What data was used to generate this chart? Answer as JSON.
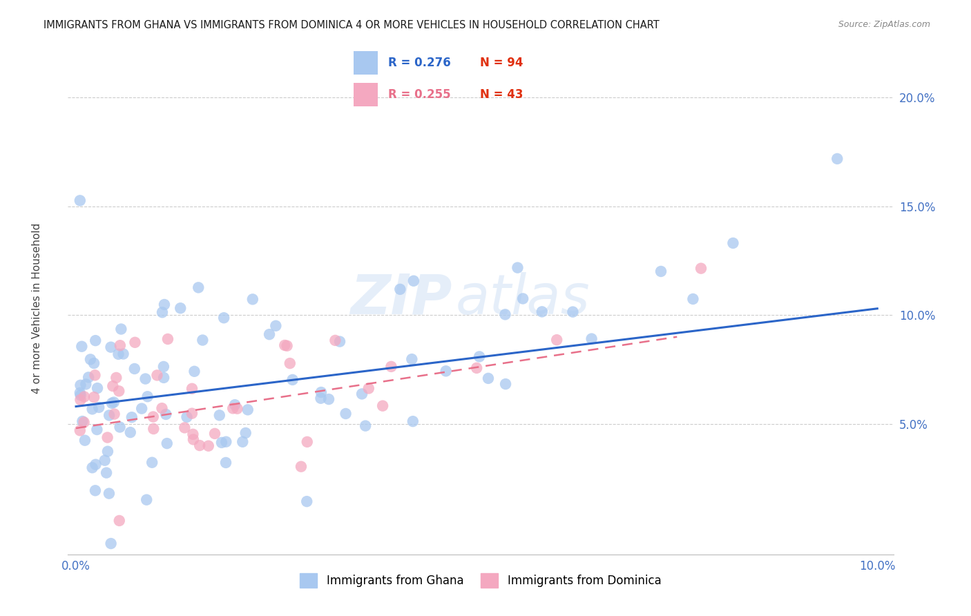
{
  "title": "IMMIGRANTS FROM GHANA VS IMMIGRANTS FROM DOMINICA 4 OR MORE VEHICLES IN HOUSEHOLD CORRELATION CHART",
  "source": "Source: ZipAtlas.com",
  "ylabel": "4 or more Vehicles in Household",
  "xlim": [
    -0.001,
    0.102
  ],
  "ylim": [
    -0.01,
    0.225
  ],
  "xticks": [
    0.0,
    0.02,
    0.04,
    0.06,
    0.08,
    0.1
  ],
  "xtick_labels": [
    "0.0%",
    "",
    "",
    "",
    "",
    "10.0%"
  ],
  "yticks_right": [
    0.05,
    0.1,
    0.15,
    0.2
  ],
  "ytick_labels_right": [
    "5.0%",
    "10.0%",
    "15.0%",
    "20.0%"
  ],
  "legend_r1": "R = 0.276",
  "legend_n1": "N = 94",
  "legend_r2": "R = 0.255",
  "legend_n2": "N = 43",
  "legend_label1": "Immigrants from Ghana",
  "legend_label2": "Immigrants from Dominica",
  "watermark": "ZIPatlas",
  "color_ghana": "#A8C8F0",
  "color_dominica": "#F4A8C0",
  "color_line_ghana": "#2B65C8",
  "color_line_dominica": "#E8708A",
  "color_axis_labels": "#4472C4",
  "ghana_trendline_x": [
    0.0,
    0.1
  ],
  "ghana_trendline_y": [
    0.058,
    0.103
  ],
  "dominica_trendline_x": [
    0.0,
    0.075
  ],
  "dominica_trendline_y": [
    0.048,
    0.09
  ]
}
